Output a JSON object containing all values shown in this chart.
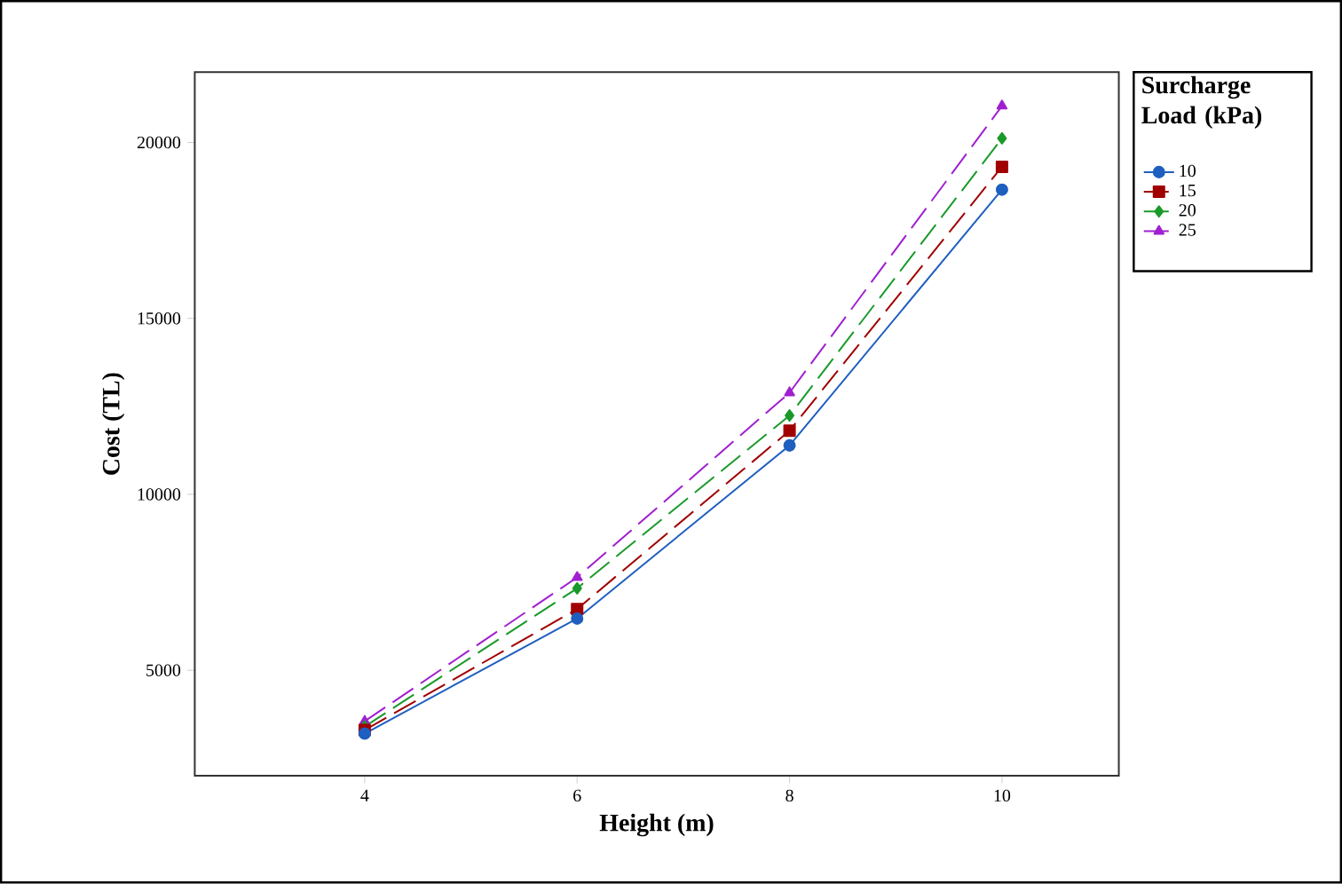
{
  "chart_data": {
    "type": "line",
    "xlabel": "Height (m)",
    "ylabel": "Cost (TL)",
    "legend_title": "Surcharge Load (kPa)",
    "x": [
      4,
      6,
      8,
      10
    ],
    "xlim": [
      2.4,
      11.1
    ],
    "ylim": [
      2000,
      22000
    ],
    "xticks": [
      4,
      6,
      8,
      10
    ],
    "yticks": [
      5000,
      10000,
      15000,
      20000
    ],
    "grid": false,
    "legend": "right",
    "series": [
      {
        "name": "10",
        "color": "#1f5fbf",
        "marker": "circle",
        "line_style": "solid",
        "values": [
          3200,
          6470,
          11390,
          18660
        ]
      },
      {
        "name": "15",
        "color": "#a00000",
        "marker": "square",
        "line_style": "dashed",
        "values": [
          3300,
          6740,
          11810,
          19310
        ]
      },
      {
        "name": "20",
        "color": "#1a9a2a",
        "marker": "diamond",
        "line_style": "dashed",
        "values": [
          3400,
          7330,
          12240,
          20120
        ]
      },
      {
        "name": "25",
        "color": "#a020d0",
        "marker": "triangle",
        "line_style": "dashed",
        "values": [
          3550,
          7640,
          12890,
          21040
        ]
      }
    ]
  }
}
